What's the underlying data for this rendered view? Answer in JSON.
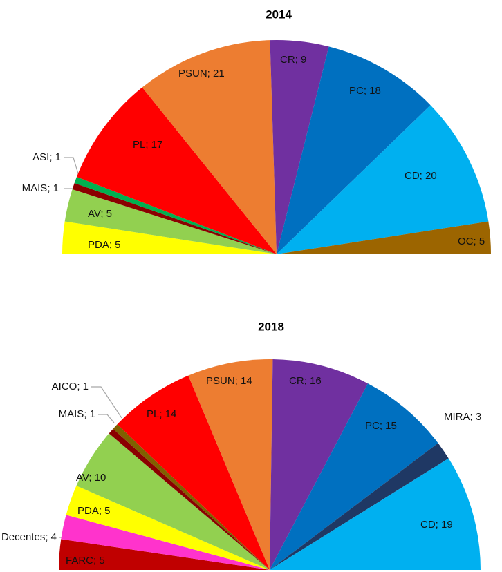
{
  "chart_data": [
    {
      "type": "pie",
      "title": "2014",
      "categories": [
        "PDA",
        "AV",
        "MAIS",
        "ASI",
        "PL",
        "PSUN",
        "CR",
        "PC",
        "CD",
        "OC"
      ],
      "values": [
        5,
        5,
        1,
        1,
        17,
        21,
        9,
        18,
        20,
        5
      ],
      "value_labels": [
        "PDA; 5",
        "AV; 5",
        "MAIS; 1",
        "ASI; 1",
        "PL; 17",
        "PSUN; 21",
        "CR; 9",
        "PC; 18",
        "CD; 20",
        "OC; 5"
      ],
      "colors": [
        "#ffff00",
        "#92d050",
        "#8b0000",
        "#00b050",
        "#ff0000",
        "#ed7d31",
        "#7030a0",
        "#0070c0",
        "#00b0f0",
        "#9c6500"
      ]
    },
    {
      "type": "pie",
      "title": "2018",
      "categories": [
        "FARC",
        "Decentes",
        "PDA",
        "AV",
        "MAIS",
        "AICO",
        "PL",
        "PSUN",
        "CR",
        "PC",
        "MIRA",
        "CD"
      ],
      "values": [
        5,
        4,
        5,
        10,
        1,
        1,
        14,
        14,
        16,
        15,
        3,
        19
      ],
      "value_labels": [
        "FARC; 5",
        "Decentes; 4",
        "PDA; 5",
        "AV; 10",
        "MAIS; 1",
        "AICO; 1",
        "PL; 14",
        "PSUN; 14",
        "CR; 16",
        "PC; 15",
        "MIRA; 3",
        "CD; 19"
      ],
      "colors": [
        "#c00000",
        "#ff33cc",
        "#ffff00",
        "#92d050",
        "#8b0000",
        "#806000",
        "#ff0000",
        "#ed7d31",
        "#7030a0",
        "#0070c0",
        "#1f3864",
        "#00b0f0"
      ]
    }
  ]
}
